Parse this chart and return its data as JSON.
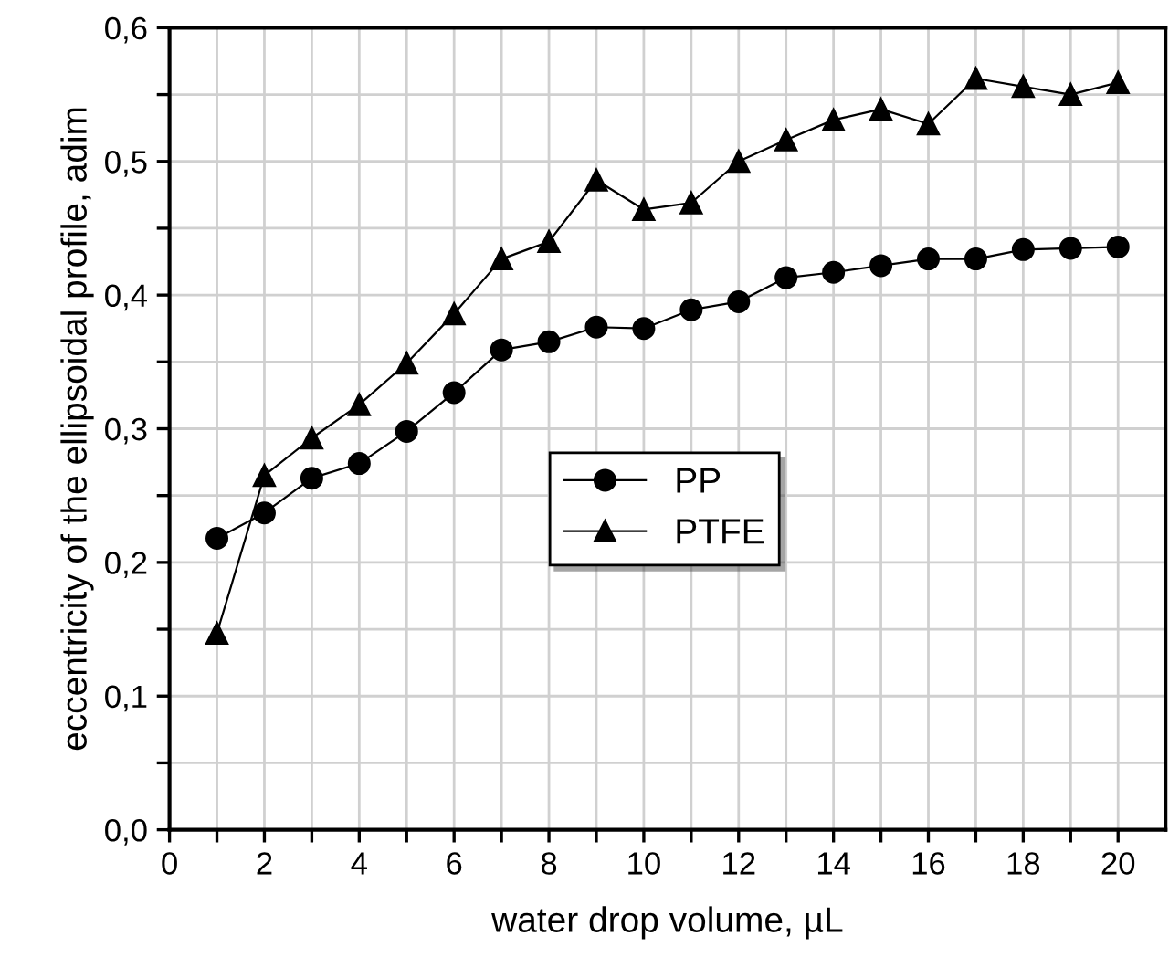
{
  "chart_data": {
    "type": "line",
    "xlabel": "water drop volume, µL",
    "ylabel": "eccentricity of the ellipsoidal profile, adim",
    "x": [
      1,
      2,
      3,
      4,
      5,
      6,
      7,
      8,
      9,
      10,
      11,
      12,
      13,
      14,
      15,
      16,
      17,
      18,
      19,
      20
    ],
    "series": [
      {
        "name": "PP",
        "color": "#000000",
        "marker": "circle",
        "values": [
          0.218,
          0.237,
          0.263,
          0.274,
          0.298,
          0.327,
          0.359,
          0.365,
          0.376,
          0.375,
          0.389,
          0.395,
          0.413,
          0.417,
          0.422,
          0.427,
          0.427,
          0.434,
          0.435,
          0.436
        ]
      },
      {
        "name": "PTFE",
        "color": "#000000",
        "marker": "triangle",
        "values": [
          0.147,
          0.265,
          0.293,
          0.318,
          0.349,
          0.386,
          0.427,
          0.44,
          0.486,
          0.464,
          0.469,
          0.5,
          0.516,
          0.531,
          0.539,
          0.528,
          0.562,
          0.556,
          0.55,
          0.559
        ]
      }
    ],
    "xlim": [
      0,
      21
    ],
    "ylim": [
      0,
      0.6
    ],
    "xticks": [
      0,
      {
        "value": 1,
        "label": null
      },
      2,
      {
        "value": 3,
        "label": null
      },
      4,
      {
        "value": 5,
        "label": null
      },
      6,
      {
        "value": 7,
        "label": null
      },
      8,
      {
        "value": 9,
        "label": null
      },
      10,
      {
        "value": 11,
        "label": null
      },
      12,
      {
        "value": 13,
        "label": null
      },
      14,
      {
        "value": 15,
        "label": null
      },
      16,
      {
        "value": 17,
        "label": null
      },
      18,
      {
        "value": 19,
        "label": null
      },
      20
    ],
    "yticks": [
      {
        "value": 0,
        "label": "0,0"
      },
      {
        "value": 0.05,
        "label": null
      },
      {
        "value": 0.1,
        "label": "0,1"
      },
      {
        "value": 0.15,
        "label": null
      },
      {
        "value": 0.2,
        "label": "0,2"
      },
      {
        "value": 0.25,
        "label": null
      },
      {
        "value": 0.3,
        "label": "0,3"
      },
      {
        "value": 0.35,
        "label": null
      },
      {
        "value": 0.4,
        "label": "0,4"
      },
      {
        "value": 0.45,
        "label": null
      },
      {
        "value": 0.5,
        "label": "0,5"
      },
      {
        "value": 0.55,
        "label": null
      },
      {
        "value": 0.6,
        "label": "0,6"
      }
    ],
    "grid": true,
    "legend": "center right",
    "line_style": "solid"
  }
}
